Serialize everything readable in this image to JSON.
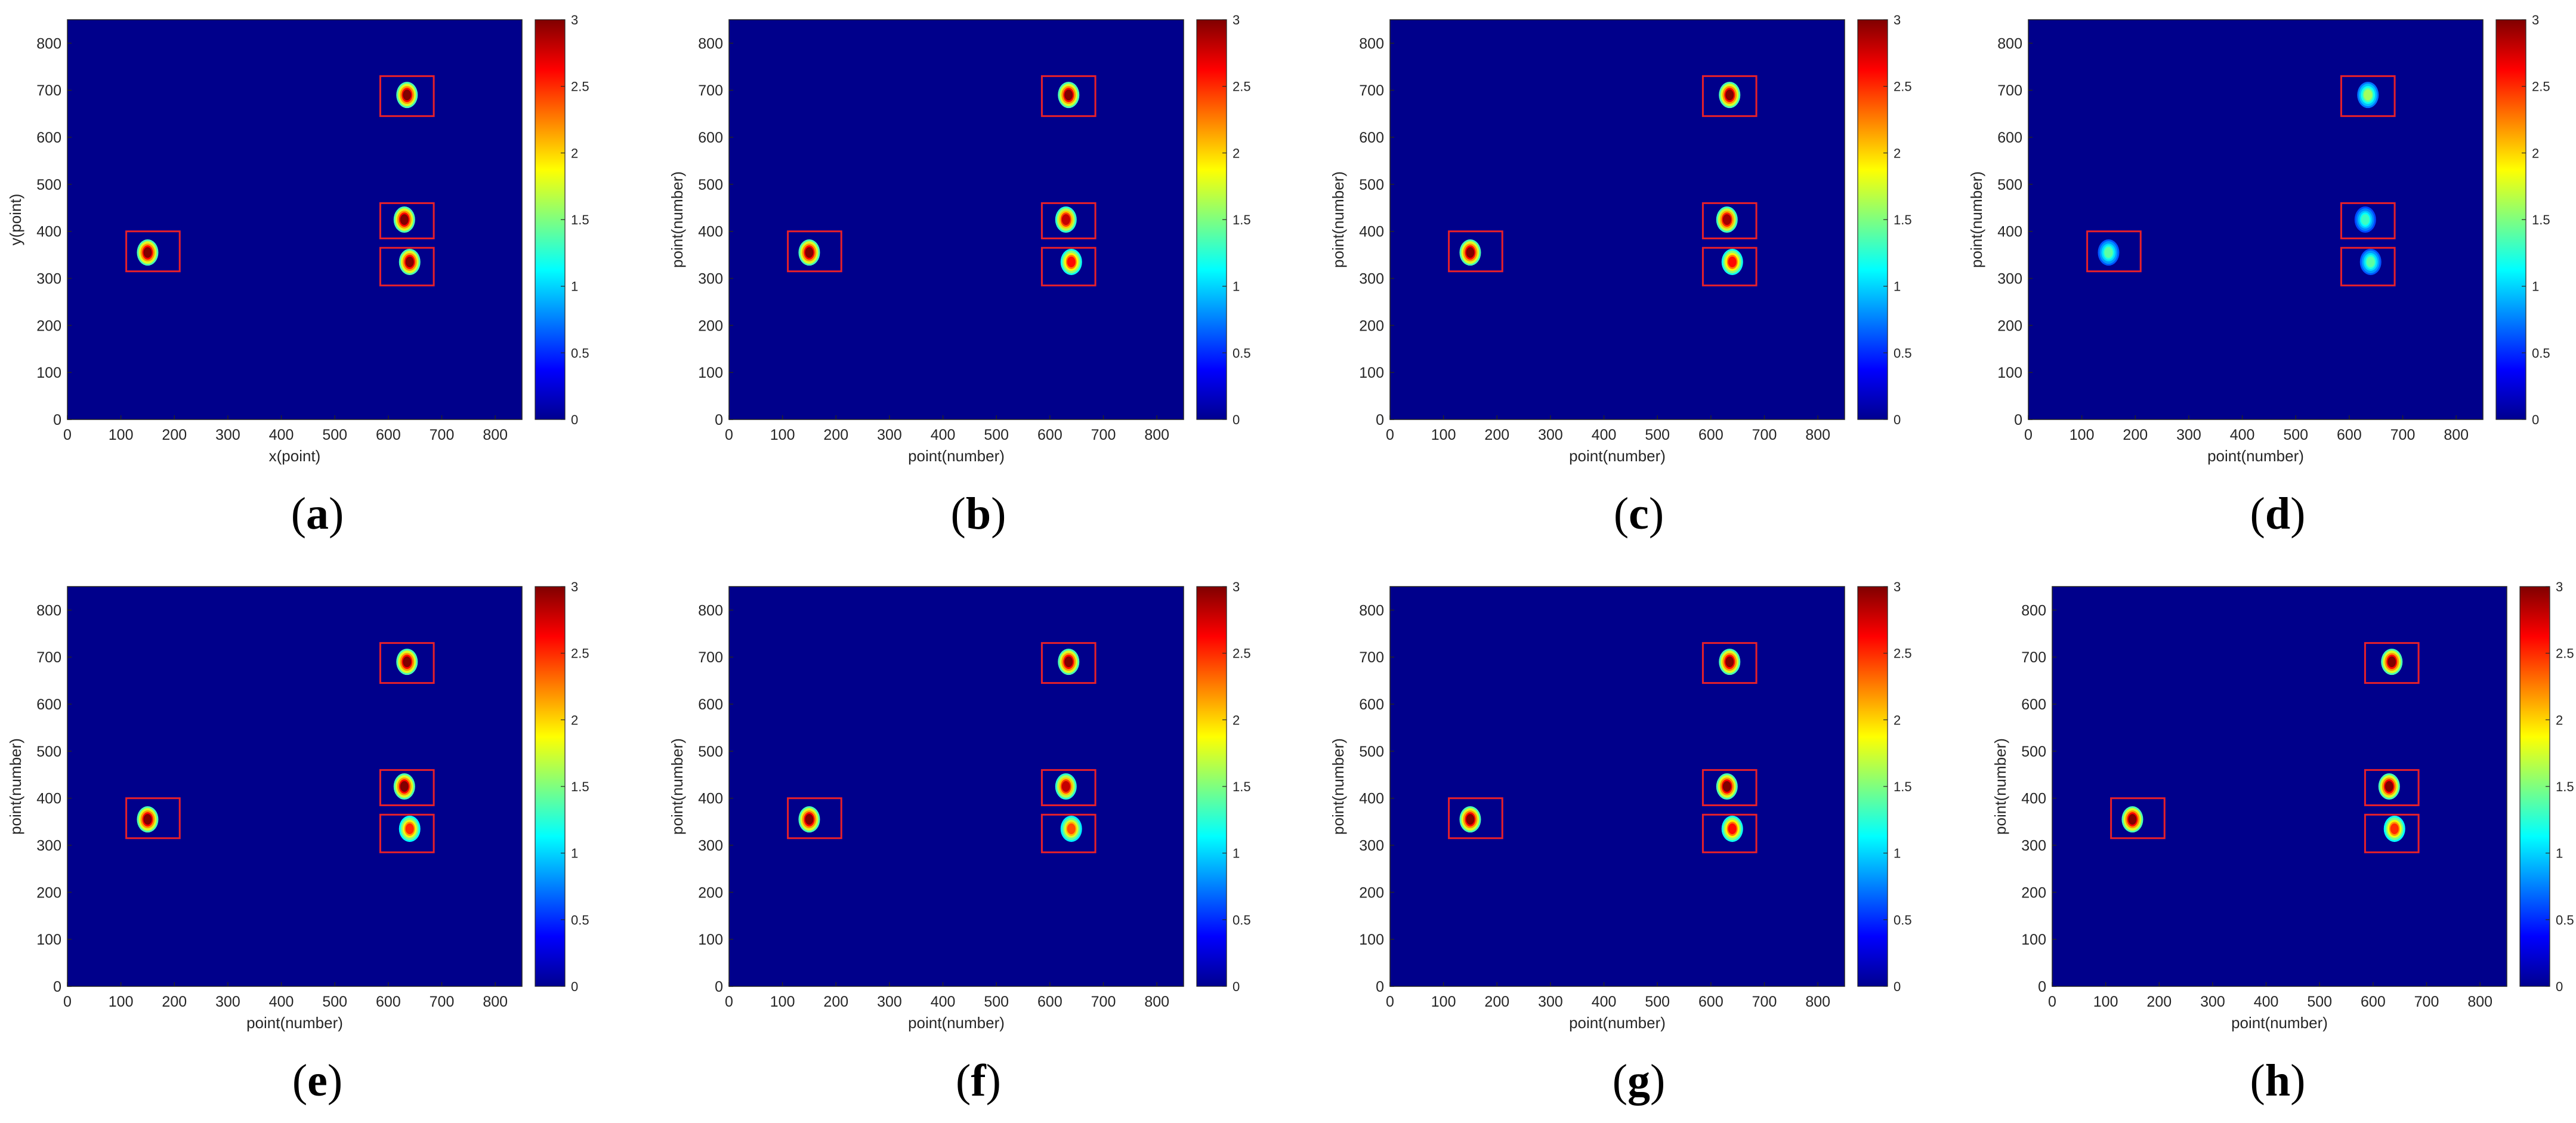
{
  "figure": {
    "colormap": "jet",
    "background_color": "#00008b",
    "box_color": "#e6202a",
    "panels": [
      {
        "caption": "a",
        "xlabel": "x(point)",
        "ylabel": "y(point)"
      },
      {
        "caption": "b",
        "xlabel": "point(number)",
        "ylabel": "point(number)"
      },
      {
        "caption": "c",
        "xlabel": "point(number)",
        "ylabel": "point(number)"
      },
      {
        "caption": "d",
        "xlabel": "point(number)",
        "ylabel": "point(number)"
      },
      {
        "caption": "e",
        "xlabel": "point(number)",
        "ylabel": "point(number)"
      },
      {
        "caption": "f",
        "xlabel": "point(number)",
        "ylabel": "point(number)"
      },
      {
        "caption": "g",
        "xlabel": "point(number)",
        "ylabel": "point(number)"
      },
      {
        "caption": "h",
        "xlabel": "point(number)",
        "ylabel": "point(number)"
      }
    ]
  },
  "chart_data": {
    "type": "heatmap",
    "xlim": [
      0,
      850
    ],
    "ylim": [
      0,
      850
    ],
    "xticks": [
      0,
      100,
      200,
      300,
      400,
      500,
      600,
      700,
      800
    ],
    "yticks": [
      0,
      100,
      200,
      300,
      400,
      500,
      600,
      700,
      800
    ],
    "colorbar": {
      "range": [
        0,
        3
      ],
      "ticks": [
        "0",
        "0.5",
        "1",
        "1.5",
        "2",
        "2.5",
        "3"
      ]
    },
    "targets": [
      {
        "box_x": [
          110,
          210
        ],
        "box_y": [
          315,
          400
        ],
        "center": [
          150,
          355
        ]
      },
      {
        "box_x": [
          585,
          685
        ],
        "box_y": [
          645,
          730
        ],
        "center": [
          635,
          690
        ]
      },
      {
        "box_x": [
          585,
          685
        ],
        "box_y": [
          385,
          460
        ],
        "center": [
          630,
          425
        ]
      },
      {
        "box_x": [
          585,
          685
        ],
        "box_y": [
          285,
          365
        ],
        "center": [
          640,
          335
        ]
      }
    ],
    "panels": [
      {
        "id": "a",
        "peak_values": [
          3.0,
          3.0,
          3.0,
          3.0
        ]
      },
      {
        "id": "b",
        "peak_values": [
          3.0,
          3.0,
          2.8,
          2.6
        ]
      },
      {
        "id": "c",
        "peak_values": [
          3.0,
          3.0,
          2.9,
          2.6
        ]
      },
      {
        "id": "d",
        "peak_values": [
          1.4,
          1.6,
          1.3,
          1.4
        ]
      },
      {
        "id": "e",
        "peak_values": [
          3.0,
          3.0,
          3.0,
          2.5
        ]
      },
      {
        "id": "f",
        "peak_values": [
          3.0,
          3.0,
          2.8,
          2.4
        ]
      },
      {
        "id": "g",
        "peak_values": [
          3.0,
          3.0,
          3.0,
          2.6
        ]
      },
      {
        "id": "h",
        "peak_values": [
          3.0,
          3.0,
          3.0,
          2.5
        ]
      }
    ]
  }
}
